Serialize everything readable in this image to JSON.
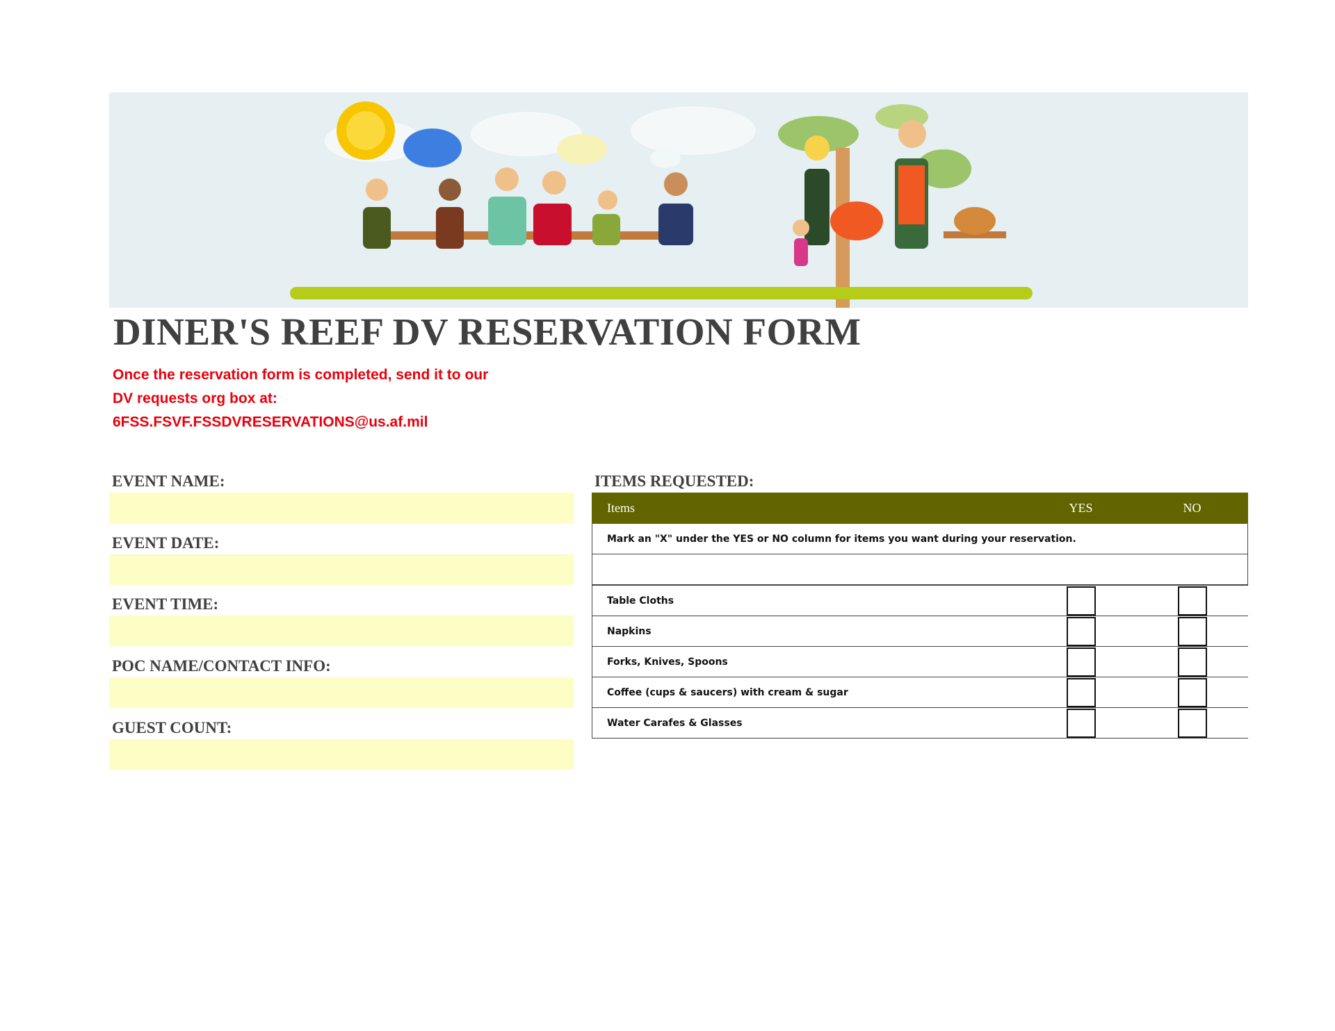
{
  "title": "DINER'S REEF DV RESERVATION FORM",
  "instructions": [
    "Once the reservation form is completed, send it to our",
    "DV requests org box at:",
    "6FSS.FSVF.FSSDVRESERVATIONS@us.af.mil"
  ],
  "fields": [
    {
      "label": "EVENT NAME:",
      "value": ""
    },
    {
      "label": "EVENT DATE:",
      "value": ""
    },
    {
      "label": "EVENT TIME:",
      "value": ""
    },
    {
      "label": "POC NAME/CONTACT INFO:",
      "value": ""
    },
    {
      "label": "GUEST COUNT:",
      "value": ""
    }
  ],
  "items_section": {
    "heading": "ITEMS REQUESTED:",
    "columns": [
      "Items",
      "YES",
      "NO"
    ],
    "instruction": "Mark an \"X\" under the YES or NO column for items you want during your reservation.",
    "rows": [
      {
        "item": "Table Cloths",
        "yes": false,
        "no": false
      },
      {
        "item": "Napkins",
        "yes": false,
        "no": false
      },
      {
        "item": "Forks, Knives, Spoons",
        "yes": false,
        "no": false
      },
      {
        "item": "Coffee (cups & saucers) with cream & sugar",
        "yes": false,
        "no": false
      },
      {
        "item": "Water Carafes & Glasses",
        "yes": false,
        "no": false
      }
    ]
  },
  "colors": {
    "header": "#626400",
    "note": "#e8000c",
    "field": "#fdfdc6",
    "banner": "#e6eff1"
  }
}
